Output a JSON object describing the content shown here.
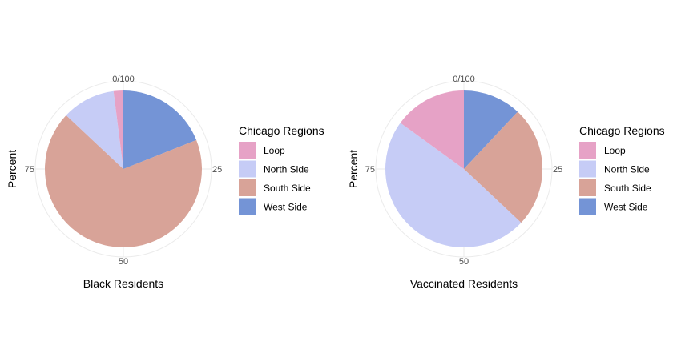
{
  "chart_data": [
    {
      "type": "pie",
      "xlabel": "Black Residents",
      "ylabel": "Percent",
      "angle_ticks": [
        "0/100",
        "25",
        "50",
        "75"
      ],
      "legend": {
        "title": "Chicago Regions",
        "position": "right"
      },
      "categories": [
        "West Side",
        "South Side",
        "North Side",
        "Loop"
      ],
      "values": [
        19,
        68,
        11,
        2
      ]
    },
    {
      "type": "pie",
      "xlabel": "Vaccinated Residents",
      "ylabel": "Percent",
      "angle_ticks": [
        "0/100",
        "25",
        "50",
        "75"
      ],
      "legend": {
        "title": "Chicago Regions",
        "position": "right"
      },
      "categories": [
        "West Side",
        "South Side",
        "North Side",
        "Loop"
      ],
      "values": [
        12,
        25,
        48,
        15
      ]
    }
  ],
  "legend_items": [
    "Loop",
    "North Side",
    "South Side",
    "West Side"
  ],
  "colors": {
    "Loop": "#e6a2c6",
    "North Side": "#c6ccf6",
    "South Side": "#d8a398",
    "West Side": "#7494d6"
  },
  "grid_color": "#ebebeb"
}
